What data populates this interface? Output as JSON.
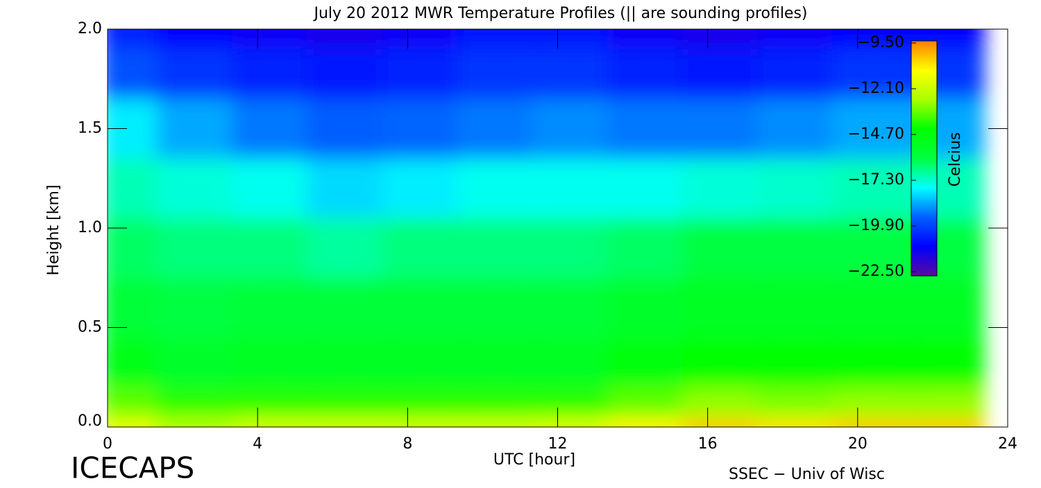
{
  "chart_data": {
    "type": "heatmap",
    "title": "July 20 2012 MWR Temperature Profiles (|| are sounding profiles)",
    "x_label": "UTC [hour]",
    "y_label": "Height [km]",
    "colorbar_label": "Celcius",
    "footer_left": "ICECAPS",
    "footer_right": "SSEC − Univ of Wisc",
    "x": [
      0.5,
      2.5,
      4.5,
      6.5,
      8.5,
      10.5,
      12.5,
      14.5,
      16.5,
      18.5,
      20.5,
      22.5
    ],
    "y": [
      0,
      0.1,
      0.3,
      0.6,
      0.9,
      1.2,
      1.5,
      1.8,
      2.0
    ],
    "z": [
      [
        -11.5,
        -12.5,
        -12,
        -12,
        -12,
        -12,
        -11.8,
        -11,
        -10.5,
        -10.8,
        -10.5,
        -10.5
      ],
      [
        -13.5,
        -14,
        -14,
        -14,
        -14,
        -14,
        -14,
        -13.5,
        -13,
        -13.2,
        -13,
        -13
      ],
      [
        -15,
        -15.5,
        -15.3,
        -15.3,
        -15.3,
        -15.3,
        -15.3,
        -14.8,
        -14.5,
        -14.5,
        -14.5,
        -14.5
      ],
      [
        -15.8,
        -16,
        -15.8,
        -15.8,
        -15.8,
        -15.8,
        -15.8,
        -15.5,
        -15.2,
        -15.2,
        -15.2,
        -15.2
      ],
      [
        -16.3,
        -16.5,
        -16.5,
        -16.8,
        -16.5,
        -16.5,
        -16.5,
        -16.3,
        -16,
        -16,
        -16,
        -16
      ],
      [
        -17,
        -17.3,
        -17.5,
        -18,
        -17.8,
        -17.5,
        -17.5,
        -17.5,
        -17.3,
        -17.2,
        -17,
        -17
      ],
      [
        -17.8,
        -18.5,
        -19,
        -19.3,
        -19.2,
        -19,
        -18.8,
        -19,
        -19,
        -18.8,
        -18.5,
        -18.5
      ],
      [
        -19.5,
        -20,
        -20.3,
        -20.5,
        -20.3,
        -20,
        -20,
        -20.3,
        -20.5,
        -20.3,
        -20,
        -20
      ],
      [
        -20.3,
        -20.8,
        -21,
        -21.2,
        -21,
        -20.5,
        -20.5,
        -21,
        -21.2,
        -21,
        -20.8,
        -20.8
      ]
    ],
    "xlim": [
      0,
      24
    ],
    "xticks": [
      0,
      4,
      8,
      12,
      16,
      20,
      24
    ],
    "ylim": [
      0,
      2
    ],
    "yticks": [
      {
        "value": 0,
        "label": "0.0"
      },
      {
        "value": 0.5,
        "label": "0.5"
      },
      {
        "value": 1,
        "label": "1.0"
      },
      {
        "value": 1.5,
        "label": "1.5"
      },
      {
        "value": 2,
        "label": "2.0"
      }
    ],
    "clim": [
      -22.5,
      -9.5
    ],
    "cticks": [
      {
        "value": -9.5,
        "label": "−9.50"
      },
      {
        "value": -12.1,
        "label": "−12.10"
      },
      {
        "value": -14.7,
        "label": "−14.70"
      },
      {
        "value": -17.3,
        "label": "−17.30"
      },
      {
        "value": -19.9,
        "label": "−19.90"
      },
      {
        "value": -22.5,
        "label": "−22.50"
      }
    ],
    "colors": [
      "#5a0aa0",
      "#0000ff",
      "#0060ff",
      "#00ffff",
      "#00ff40",
      "#00ff00",
      "#aaff00",
      "#ffff00",
      "#ff8000"
    ]
  }
}
